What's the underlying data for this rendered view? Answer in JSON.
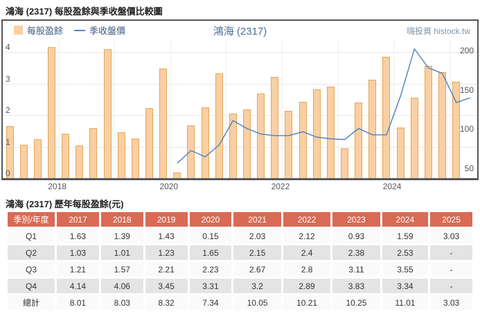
{
  "chart_section": {
    "title": "鴻海 (2317) 每股盈餘與季收盤價比較圖",
    "legend_eps": "每股盈餘",
    "legend_price": "季收盤價",
    "chart_title": "鴻海 (2317)",
    "watermark": "嗨投資 histock.tw"
  },
  "chart_data": {
    "type": "bar+line",
    "x": [
      "2017Q1",
      "2017Q2",
      "2017Q3",
      "2017Q4",
      "2018Q1",
      "2018Q2",
      "2018Q3",
      "2018Q4",
      "2019Q1",
      "2019Q2",
      "2019Q3",
      "2019Q4",
      "2020Q1",
      "2020Q2",
      "2020Q3",
      "2020Q4",
      "2021Q1",
      "2021Q2",
      "2021Q3",
      "2021Q4",
      "2022Q1",
      "2022Q2",
      "2022Q3",
      "2022Q4",
      "2023Q1",
      "2023Q2",
      "2023Q3",
      "2023Q4",
      "2024Q1",
      "2024Q2",
      "2024Q3",
      "2024Q4",
      "2025Q1",
      "2025Q2"
    ],
    "series": [
      {
        "name": "每股盈餘",
        "type": "bar",
        "axis": "left",
        "values": [
          1.63,
          1.03,
          1.21,
          4.14,
          1.39,
          1.01,
          1.57,
          4.06,
          1.43,
          1.23,
          2.21,
          3.45,
          0.15,
          1.65,
          2.23,
          3.31,
          2.03,
          2.15,
          2.67,
          3.2,
          2.12,
          2.4,
          2.8,
          2.89,
          0.93,
          2.38,
          3.11,
          3.83,
          1.59,
          2.53,
          3.55,
          3.34,
          3.03,
          null
        ]
      },
      {
        "name": "季收盤價",
        "type": "line",
        "axis": "right",
        "values": [
          null,
          null,
          null,
          null,
          null,
          null,
          null,
          null,
          null,
          null,
          null,
          null,
          63,
          79,
          71,
          86,
          117,
          107,
          100,
          98,
          98,
          103,
          96,
          94,
          93,
          107,
          99,
          99,
          148,
          208,
          184,
          177,
          140,
          146
        ]
      }
    ],
    "left_axis": {
      "min": 0,
      "max": 4.4,
      "ticks": [
        0,
        1,
        2,
        3,
        4
      ]
    },
    "right_axis": {
      "min": 44,
      "max": 220,
      "ticks": [
        50,
        100,
        150,
        200
      ]
    },
    "x_year_labels": [
      {
        "label": "2018",
        "index": 4
      },
      {
        "label": "2020",
        "index": 12
      },
      {
        "label": "2022",
        "index": 20
      },
      {
        "label": "2024",
        "index": 28
      }
    ],
    "year_boundary_indices": [
      4,
      8,
      12,
      16,
      20,
      24,
      28,
      32
    ],
    "grid": true,
    "legend_position": "top-left"
  },
  "table_section": {
    "title": "鴻海 (2317) 歷年每股盈餘(元)",
    "corner_header": "季別/年度",
    "years": [
      "2017",
      "2018",
      "2019",
      "2020",
      "2021",
      "2022",
      "2023",
      "2024",
      "2025"
    ],
    "rows": [
      {
        "label": "Q1",
        "values": [
          "1.63",
          "1.39",
          "1.43",
          "0.15",
          "2.03",
          "2.12",
          "0.93",
          "1.59",
          "3.03"
        ]
      },
      {
        "label": "Q2",
        "values": [
          "1.03",
          "1.01",
          "1.23",
          "1.65",
          "2.15",
          "2.4",
          "2.38",
          "2.53",
          "-"
        ]
      },
      {
        "label": "Q3",
        "values": [
          "1.21",
          "1.57",
          "2.21",
          "2.23",
          "2.67",
          "2.8",
          "3.11",
          "3.55",
          "-"
        ]
      },
      {
        "label": "Q4",
        "values": [
          "4.14",
          "4.06",
          "3.45",
          "3.31",
          "3.2",
          "2.89",
          "3.83",
          "3.34",
          "-"
        ]
      },
      {
        "label": "總計",
        "values": [
          "8.01",
          "8.03",
          "8.32",
          "7.34",
          "10.05",
          "10.21",
          "10.25",
          "11.01",
          "3.03"
        ]
      }
    ]
  },
  "colors": {
    "bar_fill": "#F9CFA3",
    "bar_border": "#E2A756",
    "price_line": "#5585C2",
    "table_header_bg": "#D96A55",
    "row_bg": "#FAFAFA",
    "row_alt_bg": "#E4E4E4"
  }
}
